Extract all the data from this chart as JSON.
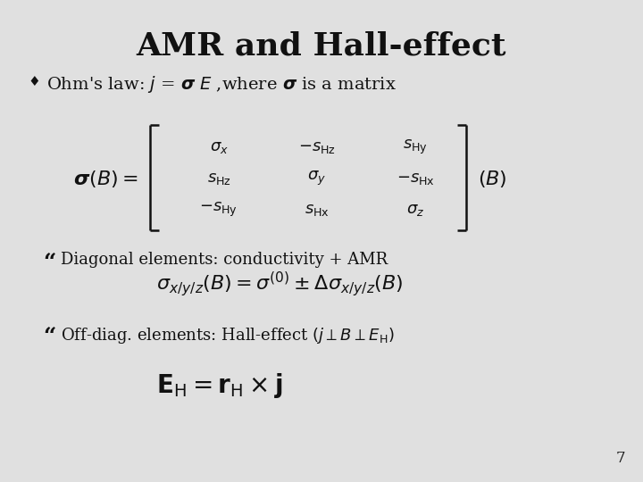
{
  "title": "AMR and Hall-effect",
  "title_fontsize": 26,
  "title_fontweight": "bold",
  "title_fontfamily": "serif",
  "bg_color": "#e0e0e0",
  "text_color": "#111111",
  "slide_number": "7",
  "bullet_char": "♦",
  "matrix_rows": [
    [
      "$\\sigma_x$",
      "$-s_{\\mathrm{Hz}}$",
      "$s_{\\mathrm{Hy}}$"
    ],
    [
      "$s_{\\mathrm{Hz}}$",
      "$\\sigma_y$",
      "$-s_{\\mathrm{Hx}}$"
    ],
    [
      "$-s_{\\mathrm{Hy}}$",
      "$s_{\\mathrm{Hx}}$",
      "$\\sigma_z$"
    ]
  ]
}
